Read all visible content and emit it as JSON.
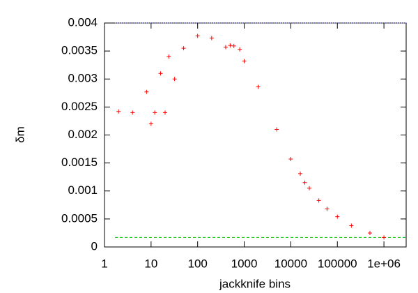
{
  "chart_data": {
    "type": "scatter",
    "x_label": "jackknife bins",
    "y_label": "δm",
    "x_log": true,
    "marker": "+",
    "x": [
      2,
      4,
      8,
      10,
      12,
      16,
      20,
      24,
      32,
      50,
      100,
      200,
      400,
      500,
      600,
      800,
      1000,
      2000,
      5000,
      10000,
      16000,
      20000,
      25000,
      40000,
      60000,
      100000,
      200000,
      500000,
      1000000
    ],
    "series": [
      {
        "color": "#ff0000",
        "values": [
          0.00242,
          0.0024,
          0.00277,
          0.0022,
          0.0024,
          0.0031,
          0.0024,
          0.0034,
          0.003,
          0.00355,
          0.00377,
          0.00373,
          0.00357,
          0.0036,
          0.00359,
          0.00353,
          0.00332,
          0.00286,
          0.0021,
          0.00157,
          0.00131,
          0.00115,
          0.00105,
          0.00083,
          0.00068,
          0.00054,
          0.00038,
          0.00025,
          0.00017
        ]
      }
    ],
    "reference_lines": [
      {
        "value": 0.004,
        "color": "#8080ff",
        "style": "dotted"
      },
      {
        "value": 0.00017,
        "color": "#00c000",
        "style": "dashed"
      }
    ],
    "xlim": [
      1,
      3000000
    ],
    "ylim": [
      0,
      0.004
    ],
    "xticks": [
      1,
      10,
      100,
      1000,
      10000,
      100000,
      {
        "value": 1000000,
        "label": "1e+06"
      }
    ],
    "yticks": [
      0,
      0.0005,
      0.001,
      0.0015,
      0.002,
      0.0025,
      0.003,
      0.0035,
      0.004
    ]
  }
}
